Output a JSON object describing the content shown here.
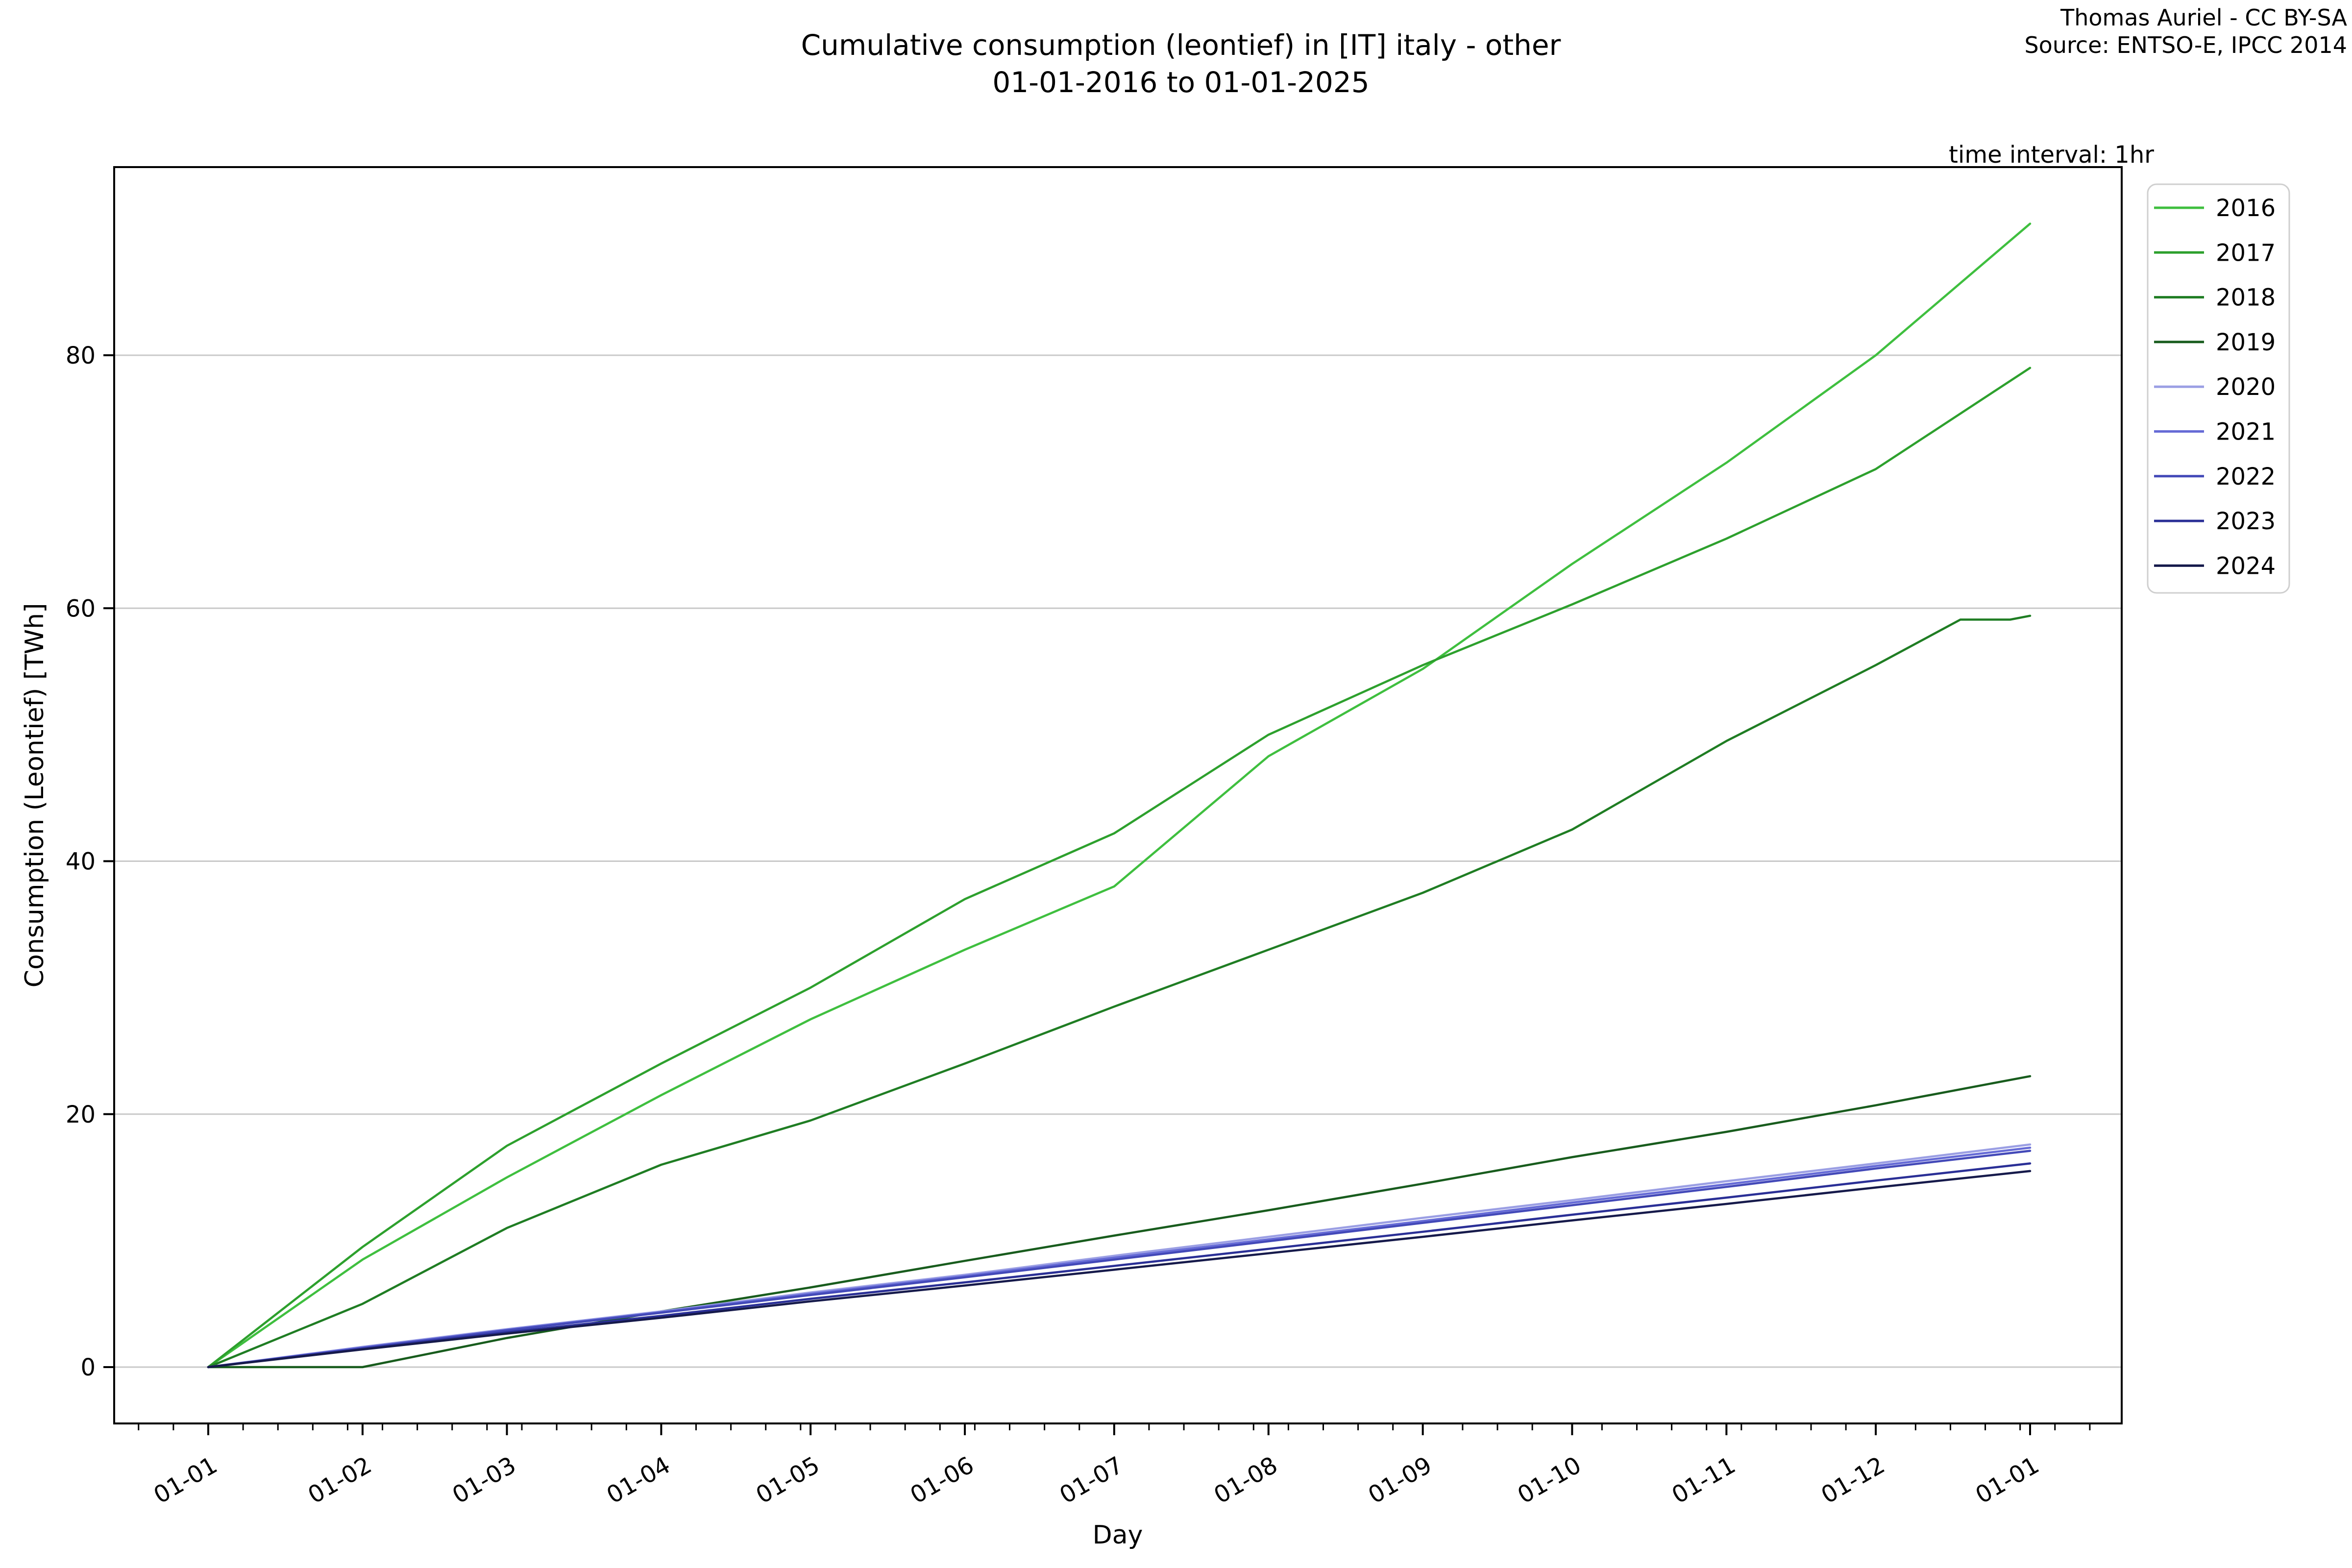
{
  "header": {
    "title_line1": "Cumulative consumption (leontief) in [IT] italy - other",
    "title_line2": "01-01-2016 to 01-01-2025",
    "attribution_line1": "Thomas Auriel - CC BY-SA",
    "attribution_line2": "Source: ENTSO-E, IPCC 2014",
    "time_interval_note": "time interval: 1hr"
  },
  "chart_data": {
    "type": "line",
    "title": "Cumulative consumption (leontief) in [IT] italy - other 01-01-2016 to 01-01-2025",
    "xlabel": "Day",
    "ylabel": "Consumption (Leontief) [TWh]",
    "grid": "horizontal-only",
    "legend_position": "upper right outside",
    "y_ticks": [
      0,
      20,
      40,
      60,
      80
    ],
    "ylim": [
      -4.5,
      94.9
    ],
    "xlim_days": [
      -18.9,
      384.4
    ],
    "x_tick_days": [
      0,
      31,
      60,
      91,
      121,
      152,
      182,
      213,
      244,
      274,
      305,
      335,
      366
    ],
    "x_tick_labels": [
      "01-01",
      "01-02",
      "01-03",
      "01-04",
      "01-05",
      "01-06",
      "01-07",
      "01-08",
      "01-09",
      "01-10",
      "01-11",
      "01-12",
      "01-01"
    ],
    "x_minor_tick_interval_days": 7,
    "series": [
      {
        "name": "2016",
        "color": "#3fbf3f",
        "days": [
          0,
          31,
          60,
          91,
          121,
          152,
          182,
          213,
          244,
          274,
          305,
          335,
          366
        ],
        "values": [
          0,
          8.5,
          15.0,
          21.5,
          27.5,
          33.0,
          38.0,
          48.3,
          55.2,
          63.5,
          71.5,
          80.0,
          90.4
        ]
      },
      {
        "name": "2017",
        "color": "#2da02d",
        "days": [
          0,
          31,
          60,
          91,
          121,
          152,
          182,
          213,
          244,
          274,
          305,
          335,
          366
        ],
        "values": [
          0,
          9.5,
          17.5,
          24.0,
          30.0,
          37.0,
          42.2,
          50.0,
          55.5,
          60.3,
          65.5,
          71.0,
          79.0
        ]
      },
      {
        "name": "2018",
        "color": "#1f7d23",
        "days": [
          0,
          31,
          60,
          91,
          121,
          152,
          182,
          213,
          244,
          274,
          305,
          335,
          352,
          362,
          366
        ],
        "values": [
          0,
          5.0,
          11.0,
          16.0,
          19.5,
          24.0,
          28.5,
          33.0,
          37.5,
          42.5,
          49.5,
          55.5,
          59.1,
          59.1,
          59.4
        ]
      },
      {
        "name": "2019",
        "color": "#185c1d",
        "days": [
          0,
          31,
          60,
          91,
          121,
          152,
          182,
          213,
          244,
          274,
          305,
          335,
          366
        ],
        "values": [
          0,
          0.0,
          2.3,
          4.4,
          6.3,
          8.4,
          10.4,
          12.4,
          14.5,
          16.6,
          18.6,
          20.7,
          23.0
        ]
      },
      {
        "name": "2020",
        "color": "#9b9fe4",
        "days": [
          0,
          31,
          60,
          91,
          121,
          152,
          182,
          213,
          244,
          274,
          305,
          335,
          366
        ],
        "values": [
          0,
          1.6,
          3.0,
          4.4,
          5.9,
          7.3,
          8.8,
          10.3,
          11.8,
          13.2,
          14.7,
          16.1,
          17.6
        ]
      },
      {
        "name": "2021",
        "color": "#666bd6",
        "days": [
          0,
          31,
          60,
          91,
          121,
          152,
          182,
          213,
          244,
          274,
          305,
          335,
          366
        ],
        "values": [
          0,
          1.55,
          2.95,
          4.35,
          5.8,
          7.2,
          8.65,
          10.1,
          11.55,
          13.0,
          14.45,
          15.9,
          17.35
        ]
      },
      {
        "name": "2022",
        "color": "#4349b8",
        "days": [
          0,
          31,
          60,
          91,
          121,
          152,
          182,
          213,
          244,
          274,
          305,
          335,
          366
        ],
        "values": [
          0,
          1.5,
          2.9,
          4.3,
          5.7,
          7.1,
          8.5,
          9.95,
          11.4,
          12.8,
          14.25,
          15.7,
          17.1
        ]
      },
      {
        "name": "2023",
        "color": "#2a2f96",
        "days": [
          0,
          31,
          60,
          91,
          121,
          152,
          182,
          213,
          244,
          274,
          305,
          335,
          366
        ],
        "values": [
          0,
          1.45,
          2.75,
          4.05,
          5.4,
          6.7,
          8.0,
          9.35,
          10.7,
          12.05,
          13.4,
          14.75,
          16.1
        ]
      },
      {
        "name": "2024",
        "color": "#161a4b",
        "days": [
          0,
          31,
          60,
          91,
          121,
          152,
          182,
          213,
          244,
          274,
          305,
          335,
          366
        ],
        "values": [
          0,
          1.4,
          2.65,
          3.9,
          5.2,
          6.45,
          7.7,
          9.0,
          10.3,
          11.6,
          12.9,
          14.2,
          15.5
        ]
      }
    ]
  }
}
